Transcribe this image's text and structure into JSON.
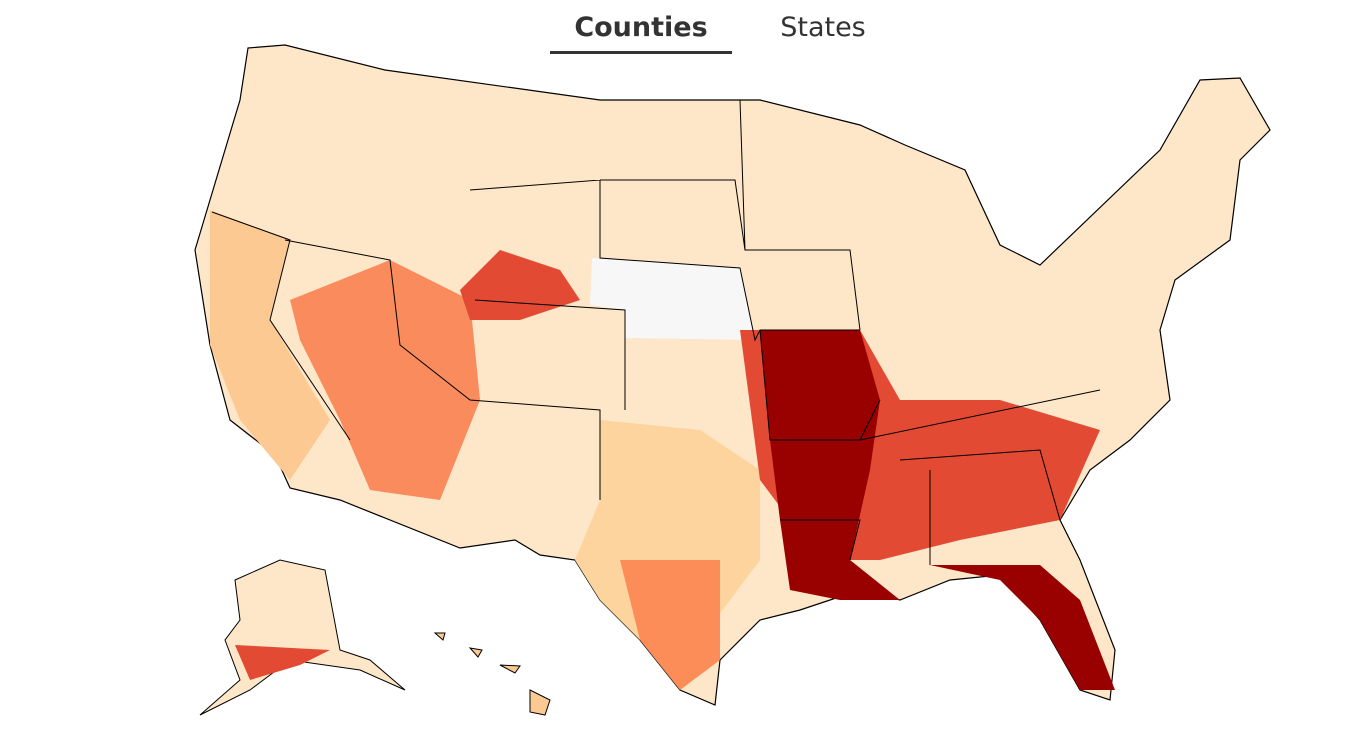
{
  "tabs": [
    "Counties",
    "States"
  ],
  "selected_tab": 0
}
